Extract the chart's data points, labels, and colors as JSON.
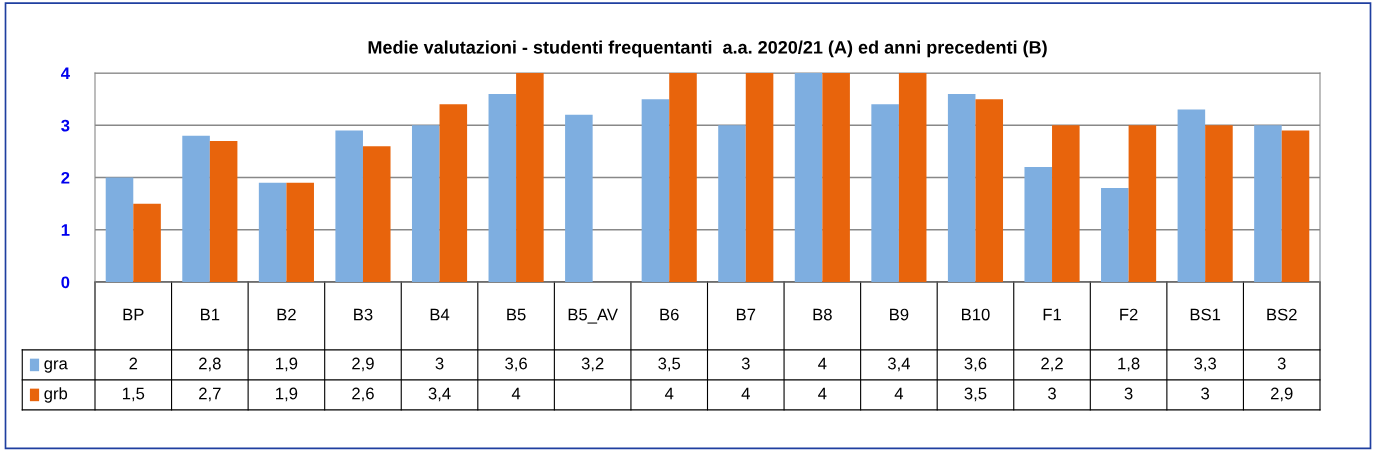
{
  "chart_data": {
    "type": "bar",
    "title": "Medie valutazioni - studenti frequentanti  a.a. 2020/21 (A) ed anni precedenti (B)",
    "categories": [
      "BP",
      "B1",
      "B2",
      "B3",
      "B4",
      "B5",
      "B5_AV",
      "B6",
      "B7",
      "B8",
      "B9",
      "B10",
      "F1",
      "F2",
      "BS1",
      "BS2"
    ],
    "series": [
      {
        "name": "gra",
        "color": "#7eaee0",
        "values": [
          2,
          2.8,
          1.9,
          2.9,
          3,
          3.6,
          3.2,
          3.5,
          3,
          4,
          3.4,
          3.6,
          2.2,
          1.8,
          3.3,
          3
        ],
        "value_labels": [
          "2",
          "2,8",
          "1,9",
          "2,9",
          "3",
          "3,6",
          "3,2",
          "3,5",
          "3",
          "4",
          "3,4",
          "3,6",
          "2,2",
          "1,8",
          "3,3",
          "3"
        ]
      },
      {
        "name": "grb",
        "color": "#e8640c",
        "values": [
          1.5,
          2.7,
          1.9,
          2.6,
          3.4,
          4,
          null,
          4,
          4,
          4,
          4,
          3.5,
          3,
          3,
          3,
          2.9
        ],
        "value_labels": [
          "1,5",
          "2,7",
          "1,9",
          "2,6",
          "3,4",
          "4",
          null,
          "4",
          "4",
          "4",
          "4",
          "3,5",
          "3",
          "3",
          "3",
          "2,9"
        ]
      }
    ],
    "ylim": [
      0,
      4
    ],
    "yticks": [
      0,
      1,
      2,
      3,
      4
    ],
    "grid": "y",
    "legend": "bottom left"
  }
}
